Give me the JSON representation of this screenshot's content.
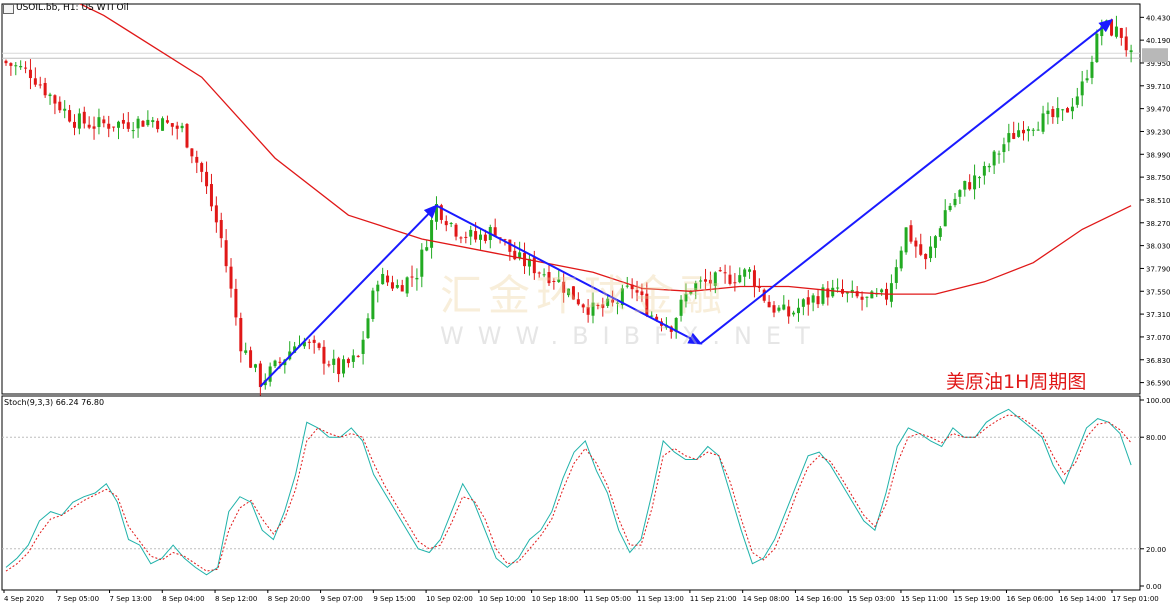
{
  "header": {
    "symbol": "USOIL.bb, H1: US WTI Oil",
    "indicator": "Stoch(9,3,3) 66.24 76.80",
    "label_cn": "美原油1H周期图",
    "watermark_cn": "汇金环球金融",
    "watermark_en": "WWW.BIBFX.NET"
  },
  "chart_data": [
    {
      "type": "candlestick",
      "title": "USOIL.bb, H1: US WTI Oil",
      "ylim": [
        36.47,
        40.57
      ],
      "y_ticks": [
        40.43,
        40.19,
        39.95,
        39.71,
        39.47,
        39.23,
        38.99,
        38.75,
        38.51,
        38.27,
        38.03,
        37.79,
        37.55,
        37.31,
        37.07,
        36.83,
        36.59
      ],
      "y_tick_labels": [
        "40.430",
        "40.190",
        "39.950",
        "39.710",
        "39.470",
        "39.230",
        "38.990",
        "38.750",
        "38.510",
        "38.270",
        "38.030",
        "37.790",
        "37.550",
        "37.310",
        "37.070",
        "36.830",
        "36.590"
      ],
      "current_price": 40.0,
      "x_tick_labels": [
        "4 Sep 2020",
        "7 Sep 05:00",
        "7 Sep 13:00",
        "8 Sep 04:00",
        "8 Sep 12:00",
        "8 Sep 20:00",
        "9 Sep 07:00",
        "9 Sep 15:00",
        "10 Sep 02:00",
        "10 Sep 10:00",
        "10 Sep 18:00",
        "11 Sep 05:00",
        "11 Sep 13:00",
        "11 Sep 21:00",
        "14 Sep 08:00",
        "14 Sep 16:00",
        "15 Sep 03:00",
        "15 Sep 11:00",
        "15 Sep 19:00",
        "16 Sep 06:00",
        "16 Sep 14:00",
        "17 Sep 01:00"
      ],
      "close_path": [
        [
          0,
          39.95
        ],
        [
          5,
          39.85
        ],
        [
          10,
          39.55
        ],
        [
          14,
          39.35
        ],
        [
          18,
          39.3
        ],
        [
          24,
          39.32
        ],
        [
          30,
          39.35
        ],
        [
          36,
          39.25
        ],
        [
          40,
          38.8
        ],
        [
          44,
          38.1
        ],
        [
          48,
          37.0
        ],
        [
          52,
          36.6
        ],
        [
          56,
          36.8
        ],
        [
          60,
          37.05
        ],
        [
          64,
          36.9
        ],
        [
          68,
          36.72
        ],
        [
          72,
          36.85
        ],
        [
          76,
          37.7
        ],
        [
          80,
          37.6
        ],
        [
          84,
          37.75
        ],
        [
          88,
          38.45
        ],
        [
          92,
          38.2
        ],
        [
          96,
          38.1
        ],
        [
          100,
          38.2
        ],
        [
          104,
          37.9
        ],
        [
          108,
          37.8
        ],
        [
          112,
          37.7
        ],
        [
          116,
          37.5
        ],
        [
          120,
          37.35
        ],
        [
          124,
          37.4
        ],
        [
          128,
          37.6
        ],
        [
          132,
          37.3
        ],
        [
          136,
          37.2
        ],
        [
          140,
          37.6
        ],
        [
          144,
          37.65
        ],
        [
          148,
          37.7
        ],
        [
          152,
          37.75
        ],
        [
          156,
          37.4
        ],
        [
          160,
          37.3
        ],
        [
          164,
          37.45
        ],
        [
          168,
          37.55
        ],
        [
          172,
          37.5
        ],
        [
          176,
          37.45
        ],
        [
          180,
          37.5
        ],
        [
          184,
          38.2
        ],
        [
          188,
          37.85
        ],
        [
          192,
          38.4
        ],
        [
          196,
          38.65
        ],
        [
          200,
          38.8
        ],
        [
          204,
          39.1
        ],
        [
          208,
          39.3
        ],
        [
          212,
          39.35
        ],
        [
          216,
          39.4
        ],
        [
          220,
          39.7
        ],
        [
          224,
          40.35
        ],
        [
          228,
          40.25
        ],
        [
          230,
          40.0
        ]
      ],
      "ma_path": [
        [
          0,
          40.95
        ],
        [
          20,
          40.45
        ],
        [
          40,
          39.8
        ],
        [
          55,
          38.95
        ],
        [
          70,
          38.35
        ],
        [
          85,
          38.1
        ],
        [
          100,
          37.95
        ],
        [
          120,
          37.75
        ],
        [
          130,
          37.58
        ],
        [
          140,
          37.55
        ],
        [
          150,
          37.6
        ],
        [
          160,
          37.6
        ],
        [
          170,
          37.55
        ],
        [
          180,
          37.52
        ],
        [
          190,
          37.52
        ],
        [
          200,
          37.65
        ],
        [
          210,
          37.85
        ],
        [
          220,
          38.2
        ],
        [
          230,
          38.45
        ]
      ],
      "arrows": [
        {
          "from": [
            52,
            36.55
          ],
          "to": [
            88,
            38.45
          ]
        },
        {
          "from": [
            88,
            38.45
          ],
          "to": [
            142,
            37.0
          ]
        },
        {
          "from": [
            142,
            37.0
          ],
          "to": [
            226,
            40.4
          ]
        }
      ]
    },
    {
      "type": "line",
      "title": "Stoch(9,3,3) 66.24 76.80",
      "ylim": [
        0,
        100
      ],
      "y_ticks": [
        100,
        80,
        20,
        0
      ],
      "y_tick_labels": [
        "100.00",
        "80.00",
        "20.00",
        "0.00"
      ],
      "main_values": [
        10,
        15,
        22,
        35,
        40,
        38,
        45,
        48,
        50,
        55,
        45,
        25,
        22,
        12,
        15,
        22,
        15,
        10,
        6,
        10,
        40,
        48,
        45,
        30,
        25,
        40,
        60,
        88,
        85,
        80,
        80,
        85,
        78,
        60,
        50,
        40,
        30,
        20,
        18,
        25,
        40,
        55,
        45,
        30,
        15,
        10,
        15,
        25,
        30,
        40,
        58,
        72,
        78,
        62,
        50,
        30,
        18,
        25,
        50,
        78,
        72,
        68,
        68,
        75,
        70,
        50,
        30,
        12,
        15,
        25,
        40,
        55,
        70,
        72,
        65,
        55,
        45,
        35,
        30,
        50,
        75,
        85,
        82,
        78,
        75,
        85,
        80,
        80,
        88,
        92,
        95,
        90,
        85,
        80,
        65,
        55,
        70,
        85,
        90,
        88,
        82,
        65
      ],
      "signal_values": [
        8,
        12,
        18,
        28,
        36,
        38,
        42,
        46,
        49,
        52,
        48,
        32,
        24,
        16,
        14,
        18,
        16,
        12,
        8,
        9,
        30,
        42,
        46,
        36,
        28,
        36,
        52,
        78,
        85,
        82,
        80,
        82,
        80,
        66,
        54,
        44,
        34,
        24,
        20,
        22,
        34,
        48,
        46,
        36,
        20,
        12,
        13,
        20,
        27,
        36,
        52,
        66,
        74,
        66,
        54,
        36,
        22,
        22,
        42,
        70,
        74,
        70,
        68,
        72,
        70,
        56,
        36,
        18,
        14,
        20,
        34,
        50,
        64,
        70,
        67,
        58,
        48,
        38,
        32,
        44,
        66,
        80,
        82,
        80,
        77,
        82,
        80,
        80,
        85,
        89,
        92,
        91,
        87,
        82,
        70,
        60,
        66,
        80,
        87,
        88,
        84,
        77
      ]
    }
  ]
}
